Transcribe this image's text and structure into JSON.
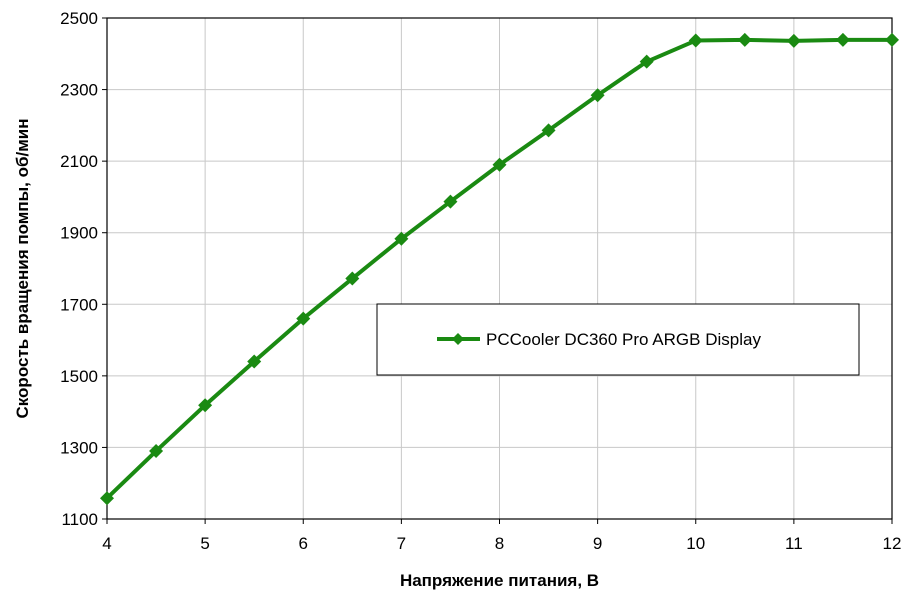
{
  "chart_data": {
    "type": "line",
    "title": "",
    "xlabel": "Напряжение питания, В",
    "ylabel": "Скорость вращения помпы, об/мин",
    "xlim": [
      4,
      12
    ],
    "ylim": [
      1100,
      2500
    ],
    "xticks": [
      4,
      5,
      6,
      7,
      8,
      9,
      10,
      11,
      12
    ],
    "yticks": [
      1100,
      1300,
      1500,
      1700,
      1900,
      2100,
      2300,
      2500
    ],
    "grid": true,
    "legend_position": "center-right",
    "series": [
      {
        "name": "PCCooler DC360 Pro ARGB Display",
        "color": "#1a8a12",
        "marker": "diamond",
        "x": [
          4,
          4.5,
          5,
          5.5,
          6,
          6.5,
          7,
          7.5,
          8,
          8.5,
          9,
          9.5,
          10,
          10.5,
          11,
          11.5,
          12
        ],
        "y": [
          1158,
          1290,
          1418,
          1540,
          1660,
          1772,
          1883,
          1987,
          2090,
          2186,
          2284,
          2378,
          2437,
          2439,
          2436,
          2439,
          2439
        ]
      }
    ]
  }
}
